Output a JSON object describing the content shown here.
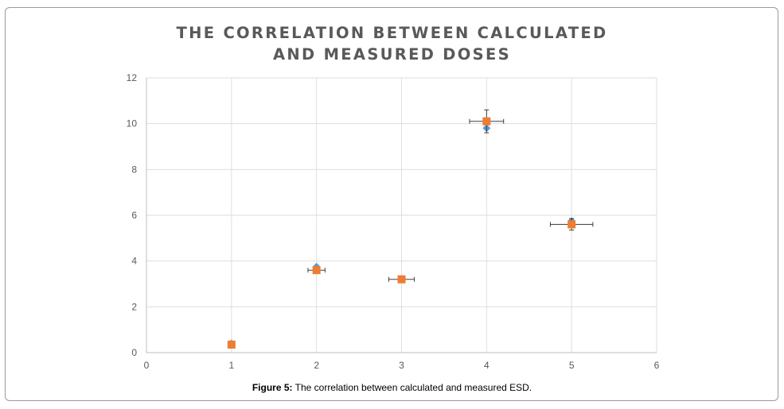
{
  "chart_data": {
    "type": "scatter",
    "title_lines": [
      "THE CORRELATION BETWEEN CALCULATED",
      "AND MEASURED DOSES"
    ],
    "xlabel": "",
    "ylabel": "",
    "xlim": [
      0,
      6
    ],
    "ylim": [
      0,
      12
    ],
    "x_ticks": [
      "0",
      "1",
      "2",
      "3",
      "4",
      "5",
      "6"
    ],
    "y_ticks": [
      "0",
      "2",
      "4",
      "6",
      "8",
      "10",
      "12"
    ],
    "grid": true,
    "legend": "none",
    "series": [
      {
        "marker": "diamond",
        "color": "#5b9bd5",
        "points": [
          {
            "x": 1,
            "y": 0.4
          },
          {
            "x": 2,
            "y": 3.75
          },
          {
            "x": 3,
            "y": 3.2
          },
          {
            "x": 4,
            "y": 9.8
          },
          {
            "x": 5,
            "y": 5.75
          }
        ]
      },
      {
        "marker": "square",
        "color": "#ed7d31",
        "points": [
          {
            "x": 1,
            "y": 0.35,
            "xerr": 0,
            "yerr": 0
          },
          {
            "x": 2,
            "y": 3.6,
            "xerr": 0.1,
            "yerr": 0.1
          },
          {
            "x": 3,
            "y": 3.2,
            "xerr": 0.15,
            "yerr": 0.15
          },
          {
            "x": 4,
            "y": 10.1,
            "xerr": 0.2,
            "yerr": 0.5
          },
          {
            "x": 5,
            "y": 5.6,
            "xerr": 0.25,
            "yerr": 0.25
          }
        ]
      }
    ]
  },
  "caption": {
    "label": "Figure 5:",
    "text": " The correlation between calculated and measured ESD."
  }
}
